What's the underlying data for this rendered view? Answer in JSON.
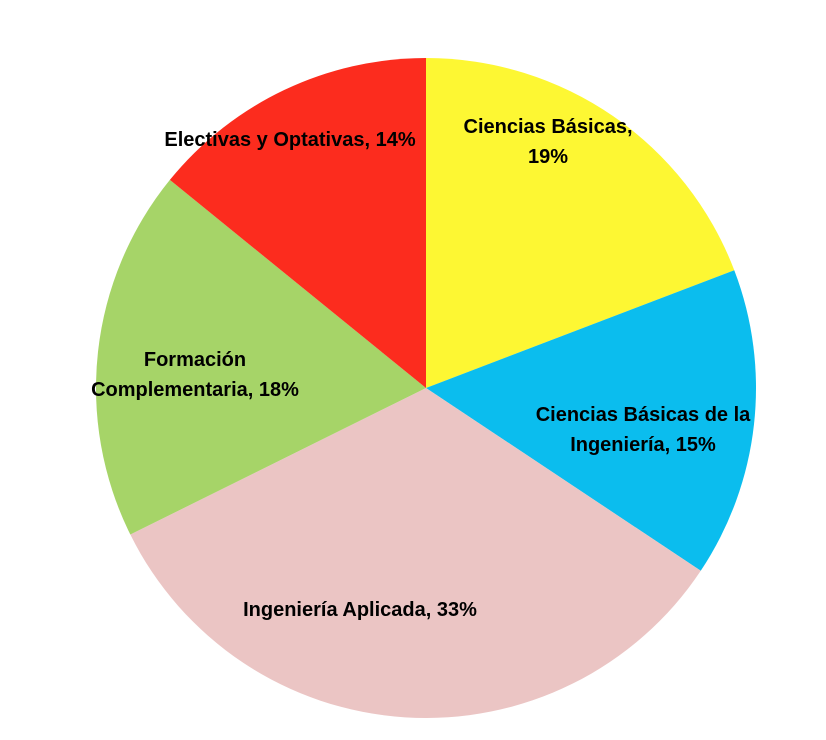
{
  "chart_data": {
    "type": "pie",
    "categories": [
      "Ciencias Básicas,",
      "Ciencias Básicas de la Ingeniería,",
      "Ingeniería Aplicada,",
      "Formación Complementaria,",
      "Electivas y Optativas,"
    ],
    "values": [
      19,
      15,
      33,
      18,
      14
    ],
    "value_labels": [
      "19%",
      "15%",
      "33%",
      "18%",
      "14%"
    ],
    "colors": [
      "#fdf733",
      "#0bbdee",
      "#ebc5c4",
      "#a6d468",
      "#fc2c1e"
    ]
  }
}
